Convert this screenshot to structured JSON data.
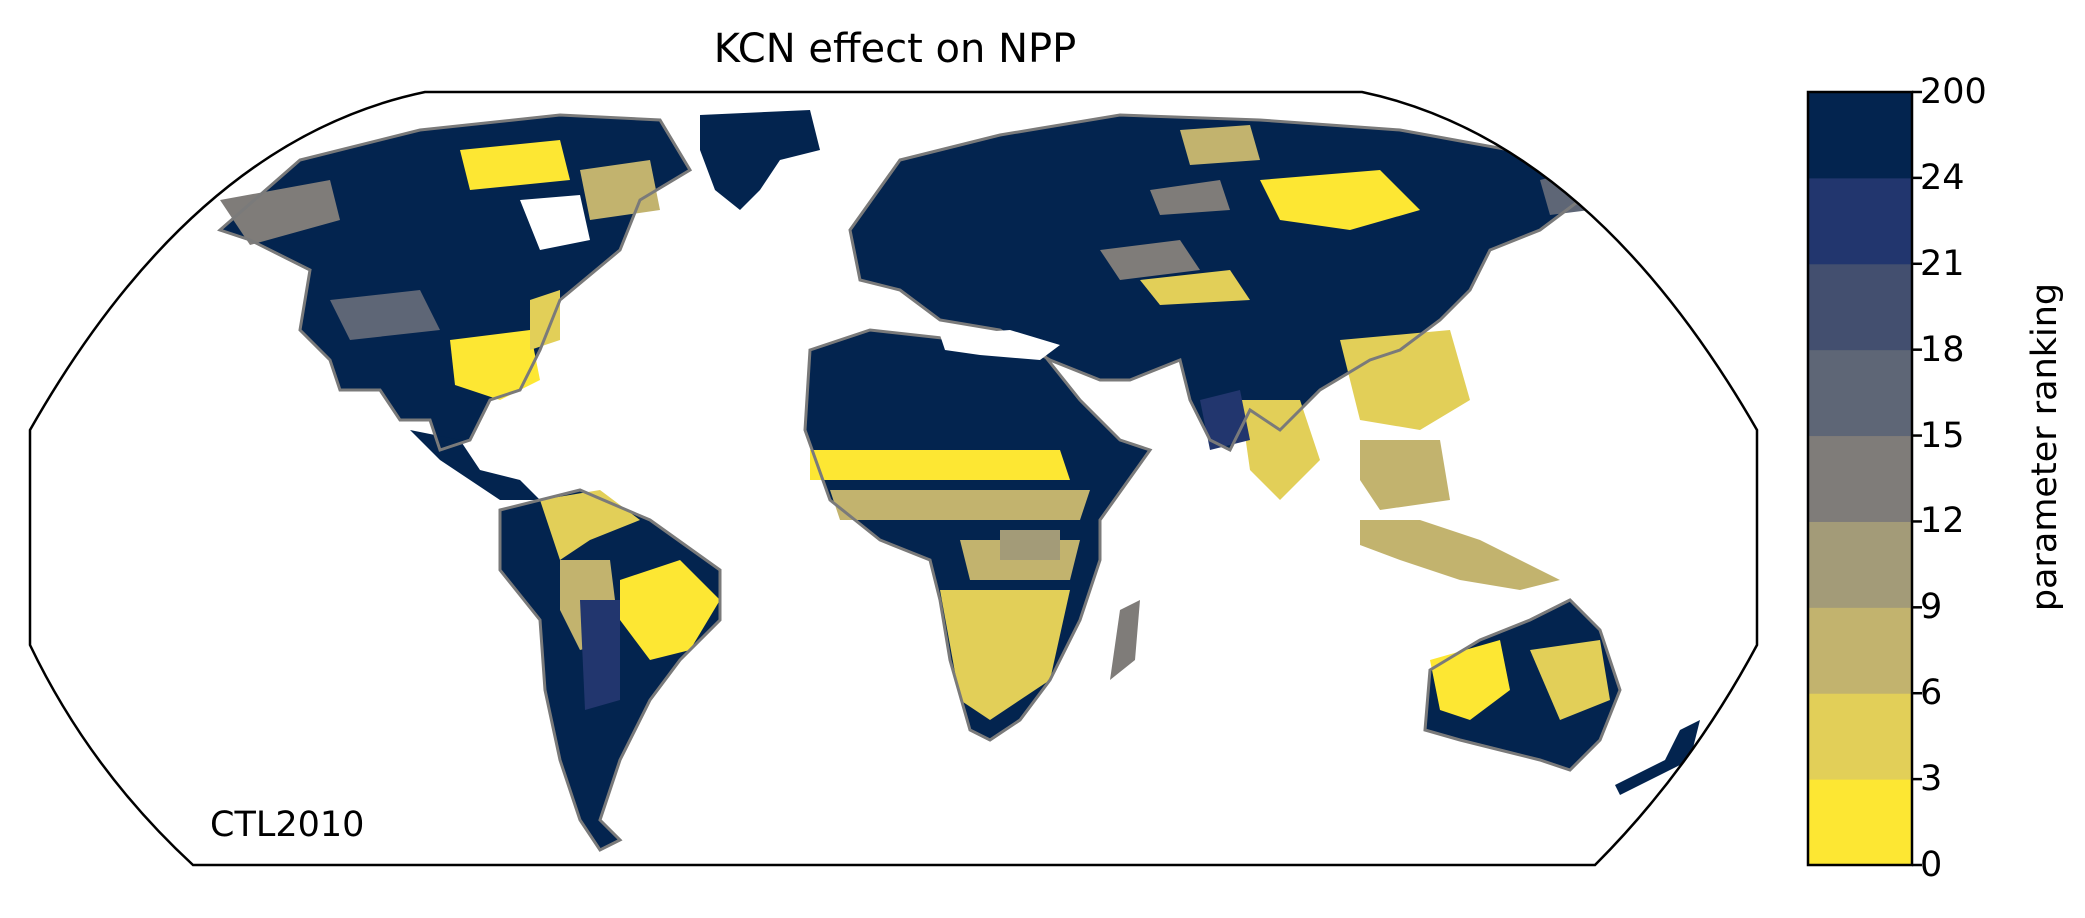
{
  "map": {
    "title": "KCN effect on NPP",
    "scenario_label": "CTL2010",
    "projection": "Robinson",
    "land_fill_description": "gridded parameter ranking over land areas",
    "coastline_color": "#7a7a7a"
  },
  "colorbar": {
    "label": "parameter ranking",
    "ticks": [
      "0",
      "3",
      "6",
      "9",
      "12",
      "15",
      "18",
      "21",
      "24",
      "200"
    ],
    "colors": [
      "#fde733",
      "#e2cf58",
      "#c2b36e",
      "#a39b78",
      "#7f7c79",
      "#5e6676",
      "#434f6f",
      "#22366e",
      "#03244f"
    ]
  }
}
